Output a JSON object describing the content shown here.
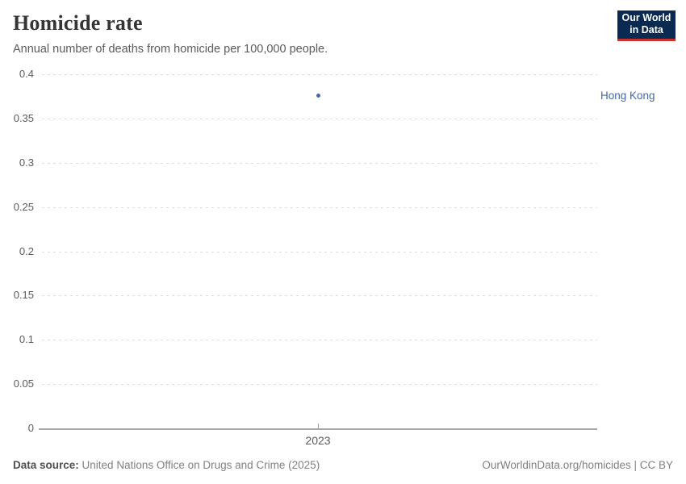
{
  "header": {
    "title": "Homicide rate",
    "subtitle": "Annual number of deaths from homicide per 100,000 people."
  },
  "logo": {
    "name": "owid-logo",
    "line1": "Our World",
    "line2": "in Data",
    "bg_color": "#0a2a52",
    "accent_color": "#c8322b"
  },
  "chart_data": {
    "type": "scatter",
    "title": "Homicide rate",
    "subtitle": "Annual number of deaths from homicide per 100,000 people.",
    "series": [
      {
        "name": "Hong Kong",
        "color": "#4866a8",
        "points": [
          {
            "x": 2023,
            "y": 0.376
          }
        ]
      }
    ],
    "xlabel": "",
    "ylabel": "",
    "ylim": [
      0,
      0.4
    ],
    "yticks": [
      0,
      0.05,
      0.1,
      0.15,
      0.2,
      0.25,
      0.3,
      0.35,
      0.4
    ],
    "ytick_labels": [
      "0",
      "0.05",
      "0.1",
      "0.15",
      "0.2",
      "0.25",
      "0.3",
      "0.35",
      "0.4"
    ],
    "xticks": [
      2023
    ],
    "xtick_labels": [
      "2023"
    ],
    "grid": "horizontal-dashed",
    "gridline_color": "#dcdcdc",
    "axis_color": "#a6a6a6",
    "legend_position": "entity label right of plot"
  },
  "footer": {
    "datasource_label": "Data source:",
    "datasource_value": "United Nations Office on Drugs and Crime (2025)",
    "attribution": "OurWorldinData.org/homicides | CC BY"
  }
}
